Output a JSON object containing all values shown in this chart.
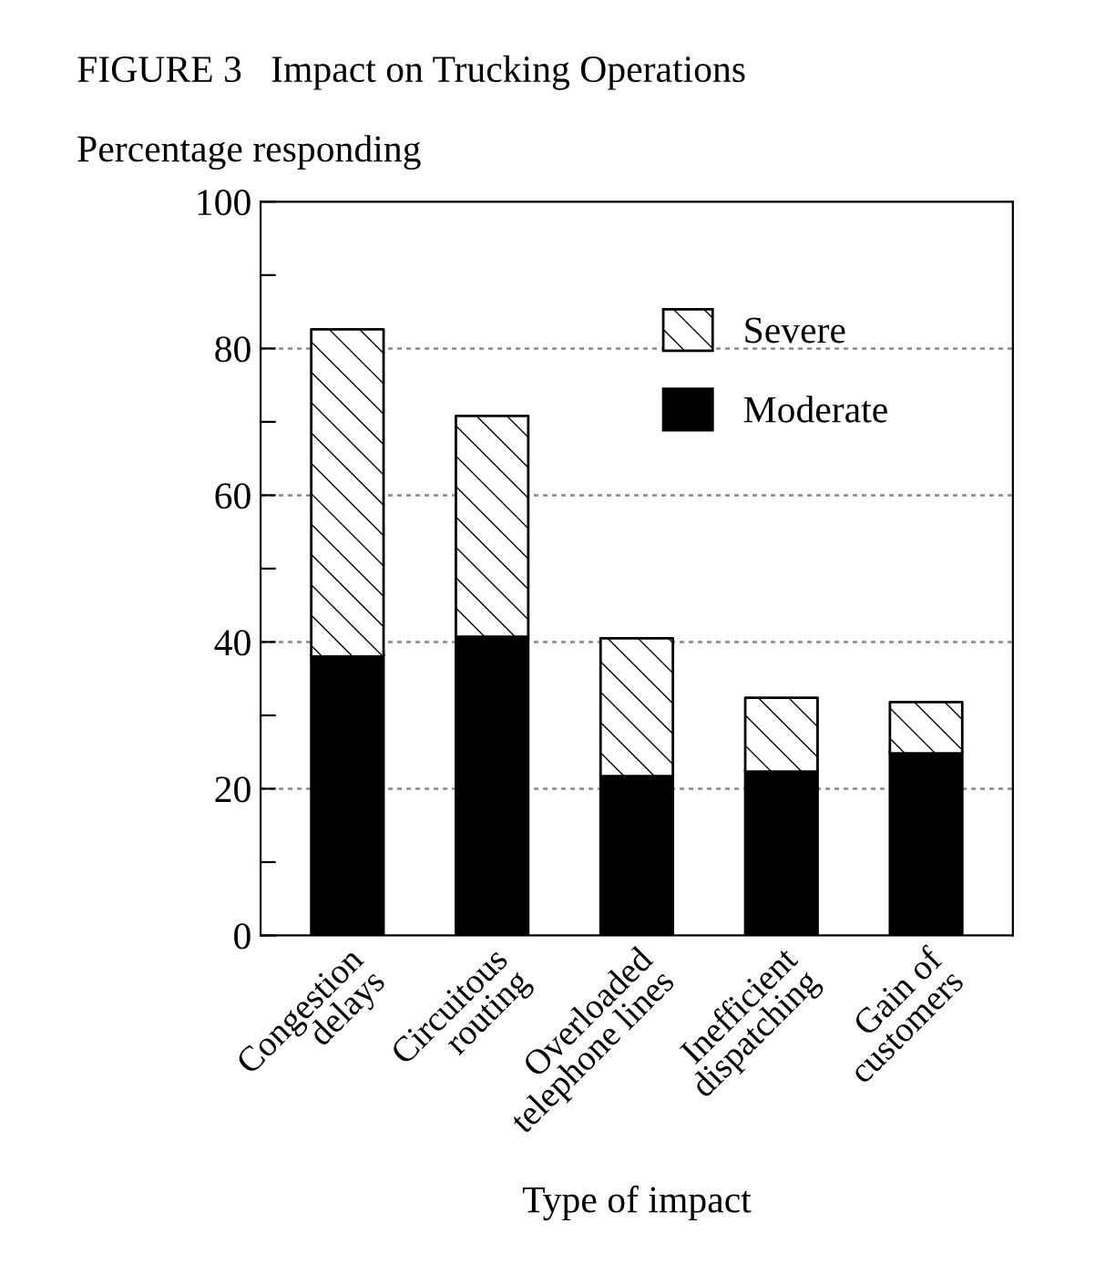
{
  "chart_data": {
    "type": "bar",
    "title": "FIGURE 3   Impact on Trucking Operations",
    "ylabel": "Percentage responding",
    "xlabel": "Type of impact",
    "categories": [
      "Congestion\ndelays",
      "Circuitous\nrouting",
      "Overloaded\ntelephone lines",
      "Inefficient\ndispatching",
      "Gain of\ncustomers"
    ],
    "stacked": true,
    "series": [
      {
        "name": "Moderate",
        "color": "#000000",
        "values": [
          38.2,
          40.9,
          21.9,
          22.5,
          25.0
        ]
      },
      {
        "name": "Severe",
        "color": "#ffffff",
        "values": [
          44.4,
          29.9,
          18.6,
          9.9,
          6.8
        ]
      }
    ],
    "ylim": [
      0,
      100
    ],
    "yticks": [
      0,
      {
        "value": 10,
        "label": null
      },
      20,
      {
        "value": 30,
        "label": null
      },
      40,
      {
        "value": 50,
        "label": null
      },
      60,
      {
        "value": 70,
        "label": null
      },
      80,
      {
        "value": 90,
        "label": null
      },
      100
    ],
    "grid": "y",
    "legend": "top right"
  }
}
